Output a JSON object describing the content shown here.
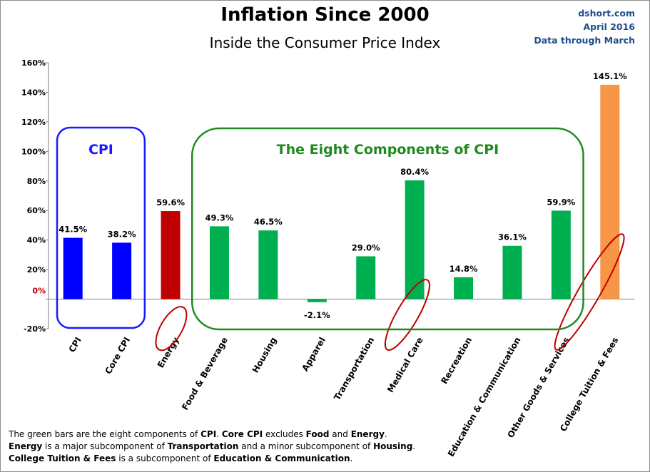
{
  "title": "Inflation Since 2000",
  "subtitle": "Inside the Consumer Price Index",
  "source": {
    "site": "dshort.com",
    "date": "April 2016",
    "note": "Data through March"
  },
  "groups": {
    "cpi": "CPI",
    "components": "The Eight Components of CPI"
  },
  "footnote": {
    "line1_a": "The green bars are the eight components of ",
    "line1_b": "CPI",
    "line1_c": ". ",
    "line1_d": "Core CPI",
    "line1_e": " excludes ",
    "line1_f": "Food",
    "line1_g": " and ",
    "line1_h": "Energy",
    "line1_i": ".",
    "line2_a": "Energy",
    "line2_b": " is a  major subcomponent of ",
    "line2_c": "Transportation",
    "line2_d": " and a minor subcomponent of ",
    "line2_e": "Housing",
    "line2_f": ".",
    "line3_a": "College Tuition & Fees",
    "line3_b": " is a subcomponent of ",
    "line3_c": "Education & Communication",
    "line3_d": "."
  },
  "colors": {
    "cpi": "#0000ff",
    "energy": "#c00000",
    "component": "#00b050",
    "tuition": "#f79646",
    "group_cpi": "#1a1aff",
    "group_components": "#1e8a1e",
    "circle": "#c00000",
    "source": "#1f4e8c"
  },
  "chart_data": {
    "type": "bar",
    "categories": [
      "CPI",
      "Core CPI",
      "Energy",
      "Food & Beverage",
      "Housing",
      "Apparel",
      "Transportation",
      "Medical Care",
      "Recreation",
      "Education & Communication",
      "Other Goods & Services",
      "College Tuition & Fees"
    ],
    "values": [
      41.5,
      38.2,
      59.6,
      49.3,
      46.5,
      -2.1,
      29.0,
      80.4,
      14.8,
      36.1,
      59.9,
      145.1
    ],
    "data_labels": [
      "41.5%",
      "38.2%",
      "59.6%",
      "49.3%",
      "46.5%",
      "-2.1%",
      "29.0%",
      "80.4%",
      "14.8%",
      "36.1%",
      "59.9%",
      "145.1%"
    ],
    "bar_groups": [
      "cpi",
      "cpi",
      "energy",
      "component",
      "component",
      "component",
      "component",
      "component",
      "component",
      "component",
      "component",
      "tuition"
    ],
    "circled": [
      false,
      false,
      true,
      false,
      false,
      false,
      false,
      true,
      false,
      false,
      false,
      true
    ],
    "y_ticks": [
      "-20%",
      "0%",
      "20%",
      "40%",
      "60%",
      "80%",
      "100%",
      "120%",
      "140%",
      "160%"
    ],
    "ylim": [
      -20,
      160
    ],
    "grid": false
  }
}
